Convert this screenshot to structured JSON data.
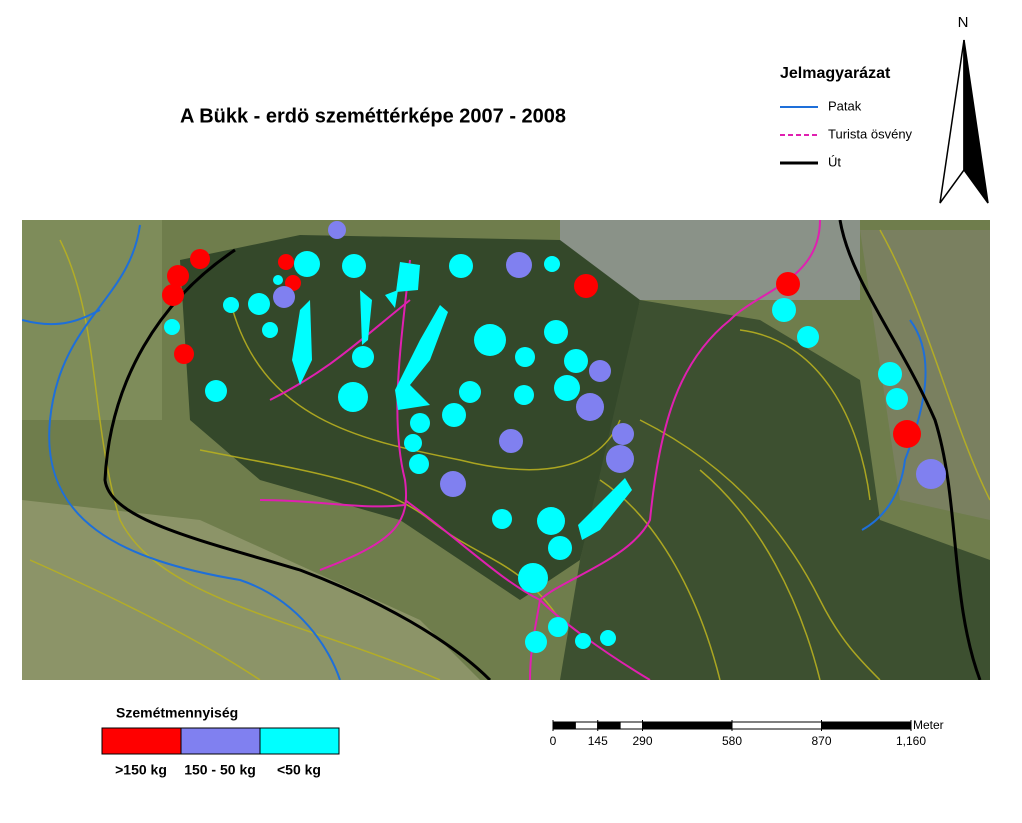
{
  "title": "A Bükk - erdö szeméttérképe 2007 - 2008",
  "north": "N",
  "legend": {
    "title": "Jelmagyarázat",
    "items": [
      {
        "label": "Patak",
        "color": "#1e6fd9",
        "style": "solid"
      },
      {
        "label": "Turista ösvény",
        "color": "#e020b0",
        "style": "dashed"
      },
      {
        "label": "Út",
        "color": "#000000",
        "style": "solid"
      }
    ]
  },
  "waste_legend": {
    "title": "Szemétmennyiség",
    "classes": [
      {
        "label": ">150 kg",
        "color": "#ff0000"
      },
      {
        "label": "150 - 50 kg",
        "color": "#8080f0"
      },
      {
        "label": "<50 kg",
        "color": "#00ffff"
      }
    ]
  },
  "scale_bar": {
    "unit": "Meter",
    "ticks": [
      0,
      145,
      290,
      580,
      870,
      {
        "value": 1160,
        "label": "1,160"
      }
    ]
  }
}
